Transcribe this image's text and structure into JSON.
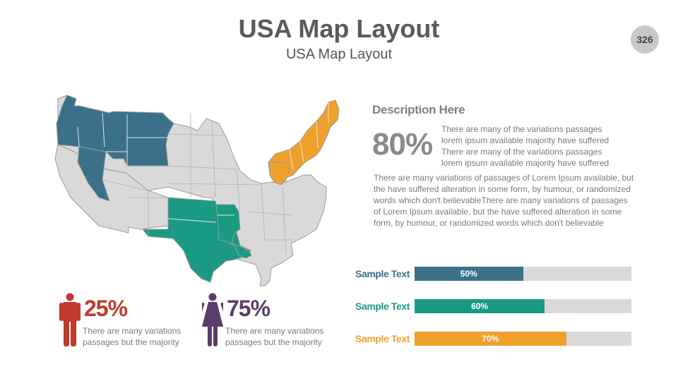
{
  "header": {
    "title": "USA Map Layout",
    "subtitle": "USA Map Layout",
    "page_number": "326"
  },
  "colors": {
    "blue": "#3a7189",
    "green": "#1a9a82",
    "orange": "#efa02c",
    "red": "#c0392b",
    "purple": "#5a3d6a",
    "grey_state": "#d9d9d9"
  },
  "description": {
    "title": "Description Here",
    "big_percent": "80%",
    "short_text": "There are many of the variations passages lorem ipsum available majority have suffered There are many of the variations passages lorem ipsum available majority have suffered",
    "paragraph": "There are many variations of passages  of Lorem Ipsum available, but the have suffered alteration in some  form, by humour, or randomized words which  don't believableThere are many variations of passages  of Lorem Ipsum available, but the have suffered alteration in some  form, by humour, or randomized words which  don't believable"
  },
  "bars": [
    {
      "label": "Sample Text",
      "percent_label": "50%",
      "value": 0.5,
      "color": "#3a7189",
      "label_color": "#3a7189"
    },
    {
      "label": "Sample Text",
      "percent_label": "60%",
      "value": 0.6,
      "color": "#1a9a82",
      "label_color": "#1a9a82"
    },
    {
      "label": "Sample Text",
      "percent_label": "70%",
      "value": 0.7,
      "color": "#efa02c",
      "label_color": "#efa02c"
    }
  ],
  "stats": [
    {
      "icon": "male-icon",
      "percent": "25%",
      "caption": "There are many variations passages but the majority",
      "color": "#c0392b"
    },
    {
      "icon": "female-icon",
      "percent": "75%",
      "caption": "There are many variations passages but the majority",
      "color": "#5a3d6a"
    }
  ]
}
